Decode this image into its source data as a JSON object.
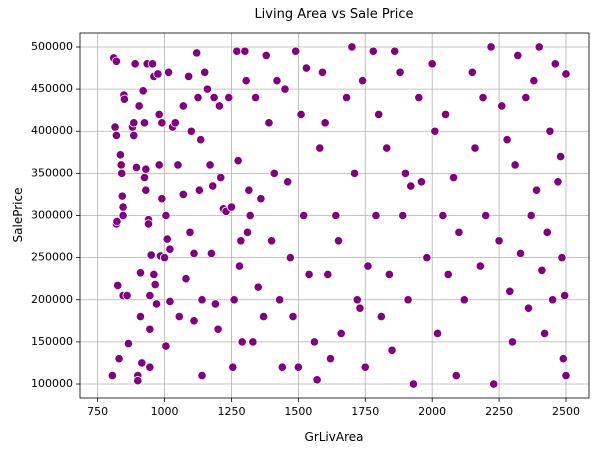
{
  "chart_data": {
    "type": "scatter",
    "title": "Living Area vs Sale Price",
    "x_label": "GrLivArea",
    "y_label": "SalePrice",
    "color": "#800080",
    "grid": true,
    "xlim": [
      684,
      2586
    ],
    "ylim": [
      83400,
      516600
    ],
    "xticks": [
      750,
      1000,
      1250,
      1500,
      1750,
      2000,
      2250,
      2500
    ],
    "yticks": [
      100000,
      150000,
      200000,
      250000,
      300000,
      350000,
      400000,
      450000,
      500000
    ],
    "x": [
      805,
      810,
      820,
      815,
      820,
      820,
      822,
      825,
      830,
      835,
      838,
      840,
      842,
      845,
      845,
      848,
      850,
      845,
      860,
      865,
      880,
      885,
      885,
      890,
      895,
      900,
      900,
      905,
      910,
      910,
      915,
      920,
      925,
      925,
      930,
      930,
      935,
      940,
      940,
      945,
      945,
      945,
      950,
      955,
      960,
      960,
      965,
      970,
      975,
      980,
      980,
      985,
      990,
      990,
      1000,
      1005,
      1005,
      1010,
      1015,
      1020,
      1020,
      1030,
      1040,
      1050,
      1055,
      1070,
      1070,
      1080,
      1090,
      1095,
      1100,
      1110,
      1110,
      1120,
      1125,
      1130,
      1135,
      1140,
      1140,
      1150,
      1160,
      1170,
      1175,
      1180,
      1185,
      1190,
      1200,
      1205,
      1210,
      1220,
      1230,
      1240,
      1250,
      1255,
      1260,
      1270,
      1275,
      1280,
      1285,
      1290,
      1300,
      1305,
      1310,
      1315,
      1320,
      1330,
      1340,
      1350,
      1360,
      1370,
      1380,
      1390,
      1400,
      1410,
      1420,
      1430,
      1440,
      1450,
      1460,
      1470,
      1480,
      1490,
      1500,
      1510,
      1520,
      1530,
      1540,
      1560,
      1570,
      1580,
      1590,
      1600,
      1610,
      1620,
      1640,
      1650,
      1660,
      1680,
      1700,
      1710,
      1720,
      1730,
      1740,
      1750,
      1760,
      1780,
      1790,
      1800,
      1810,
      1830,
      1840,
      1850,
      1860,
      1880,
      1890,
      1900,
      1910,
      1920,
      1930,
      1950,
      1960,
      1980,
      2000,
      2010,
      2020,
      2040,
      2050,
      2060,
      2080,
      2090,
      2100,
      2120,
      2150,
      2160,
      2180,
      2190,
      2200,
      2220,
      2230,
      2250,
      2260,
      2280,
      2290,
      2300,
      2310,
      2320,
      2330,
      2350,
      2360,
      2370,
      2380,
      2390,
      2400,
      2410,
      2420,
      2430,
      2440,
      2450,
      2460,
      2470,
      2480,
      2485,
      2490,
      2495,
      2500,
      2500
    ],
    "y": [
      110000,
      487000,
      483000,
      405000,
      395000,
      290000,
      293000,
      217000,
      130000,
      372000,
      360000,
      350000,
      323000,
      310000,
      300000,
      443000,
      438000,
      205000,
      205000,
      148000,
      405000,
      395000,
      410000,
      480000,
      357000,
      110000,
      104000,
      430000,
      232000,
      180000,
      125000,
      448000,
      410000,
      345000,
      330000,
      355000,
      480000,
      295000,
      290000,
      205000,
      165000,
      120000,
      253000,
      480000,
      465000,
      230000,
      218000,
      195000,
      468000,
      420000,
      360000,
      252000,
      410000,
      320000,
      250000,
      300000,
      145000,
      272000,
      470000,
      260000,
      198000,
      405000,
      410000,
      360000,
      180000,
      430000,
      325000,
      225000,
      465000,
      280000,
      400000,
      255000,
      175000,
      493000,
      440000,
      330000,
      390000,
      110000,
      200000,
      470000,
      450000,
      360000,
      255000,
      335000,
      440000,
      195000,
      165000,
      430000,
      345000,
      308000,
      305000,
      440000,
      310000,
      120000,
      200000,
      495000,
      365000,
      240000,
      270000,
      150000,
      495000,
      460000,
      280000,
      330000,
      300000,
      150000,
      440000,
      215000,
      320000,
      180000,
      490000,
      410000,
      270000,
      350000,
      460000,
      200000,
      120000,
      450000,
      340000,
      250000,
      180000,
      495000,
      120000,
      420000,
      300000,
      475000,
      230000,
      150000,
      105000,
      380000,
      470000,
      410000,
      230000,
      130000,
      300000,
      270000,
      160000,
      440000,
      500000,
      350000,
      200000,
      190000,
      460000,
      120000,
      240000,
      495000,
      300000,
      420000,
      180000,
      380000,
      230000,
      140000,
      495000,
      470000,
      300000,
      350000,
      200000,
      335000,
      100000,
      440000,
      340000,
      250000,
      480000,
      400000,
      160000,
      300000,
      420000,
      230000,
      345000,
      110000,
      280000,
      200000,
      470000,
      380000,
      240000,
      440000,
      300000,
      500000,
      100000,
      270000,
      430000,
      390000,
      210000,
      150000,
      360000,
      490000,
      255000,
      440000,
      190000,
      300000,
      460000,
      330000,
      500000,
      235000,
      160000,
      280000,
      400000,
      200000,
      480000,
      340000,
      370000,
      250000,
      130000,
      205000,
      110000,
      468000
    ]
  }
}
